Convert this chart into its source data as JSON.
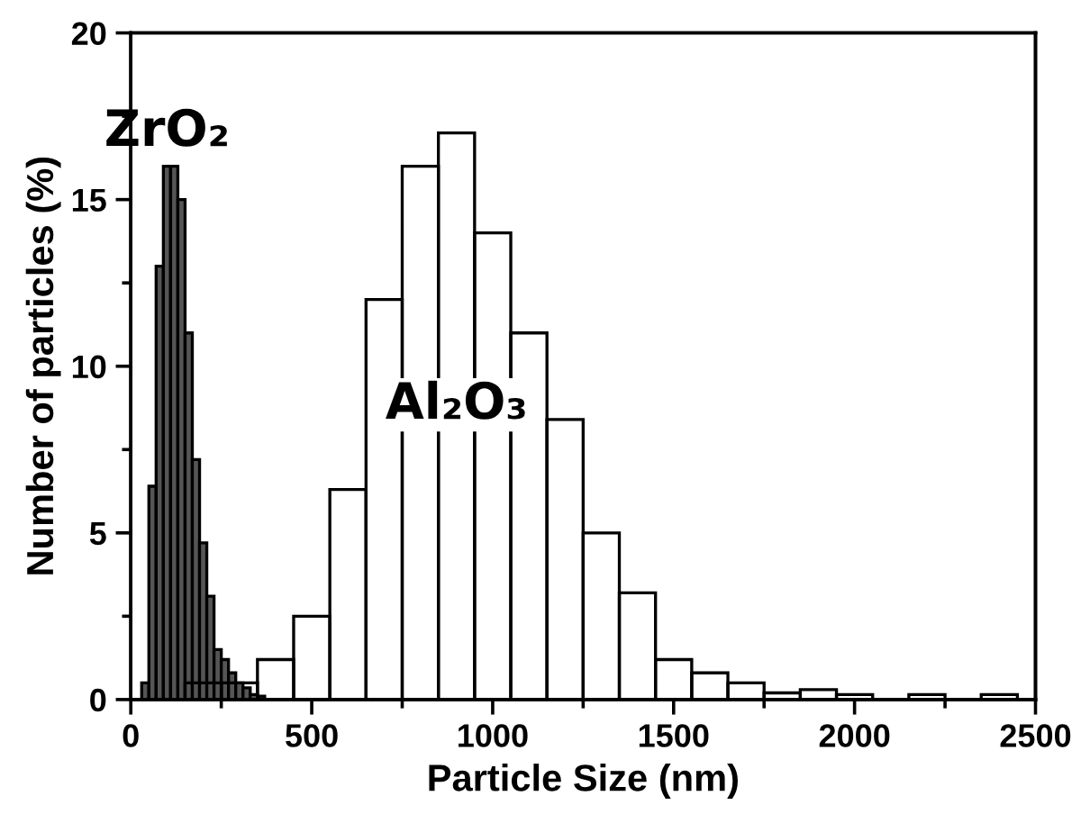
{
  "chart_data": [
    {
      "type": "histogram",
      "xlabel": "Particle Size (nm)",
      "ylabel": "Number of particles (%)",
      "bins": [
        150,
        250,
        350,
        450,
        550,
        650,
        750,
        850,
        950,
        1050,
        1150,
        1250,
        1350,
        1450,
        1550,
        1650,
        1750,
        1850,
        1950,
        2050,
        2150,
        2250,
        2350,
        2450
      ],
      "series": [
        {
          "name": "Al₂O₃",
          "color": "#000000",
          "values": [
            0.5,
            0.5,
            1.2,
            2.5,
            6.3,
            12.0,
            16.0,
            17.0,
            14.0,
            11.0,
            8.4,
            5.0,
            3.2,
            1.2,
            0.8,
            0.5,
            0.2,
            0.3,
            0.15,
            0,
            0.15,
            0,
            0.15
          ]
        }
      ],
      "xlim": [
        0,
        2500
      ],
      "xticks": [
        0,
        500,
        1000,
        1500,
        2000,
        2500
      ],
      "ylim": [
        0,
        20
      ],
      "yticks": [
        0,
        5,
        10,
        15,
        20
      ]
    },
    {
      "type": "histogram",
      "bins": [
        30,
        50,
        70,
        90,
        110,
        130,
        150,
        170,
        190,
        210,
        230,
        250,
        270,
        290,
        310,
        330,
        350,
        370
      ],
      "series": [
        {
          "name": "ZrO₂",
          "color": "#555555",
          "values": [
            0.5,
            6.4,
            13.0,
            16.0,
            16.0,
            15.0,
            11.0,
            7.2,
            4.7,
            3.1,
            1.5,
            1.2,
            0.8,
            0.5,
            0.35,
            0.15,
            0.1
          ]
        }
      ],
      "xlim": [
        0,
        2500
      ],
      "ylim": [
        0,
        20
      ],
      "tick_labels": false
    }
  ]
}
